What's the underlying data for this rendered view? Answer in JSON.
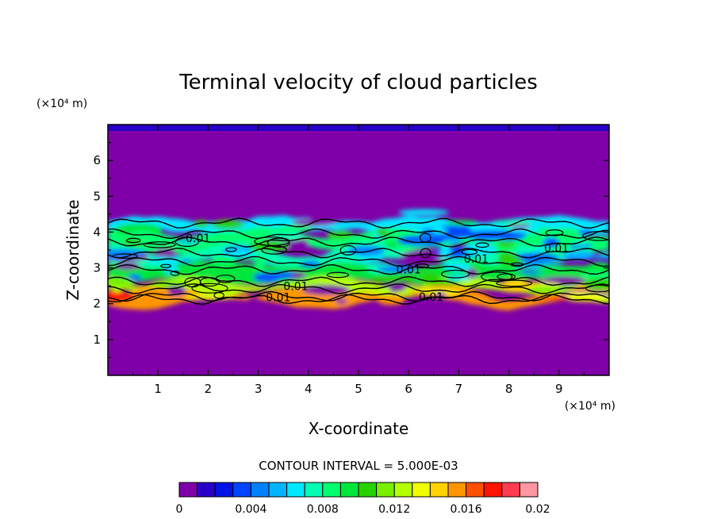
{
  "chart_data": {
    "type": "heatmap",
    "title": "Terminal velocity of cloud particles",
    "xlabel": "X-coordinate",
    "ylabel": "Z-coordinate",
    "x_unit": "(×10⁴ m)",
    "y_unit": "(×10⁴ m)",
    "xlim": [
      0,
      10
    ],
    "ylim": [
      0,
      7
    ],
    "x_ticks": [
      "1",
      "2",
      "3",
      "4",
      "5",
      "6",
      "7",
      "8",
      "9"
    ],
    "y_ticks": [
      "1",
      "2",
      "3",
      "4",
      "5",
      "6"
    ],
    "contour_interval_text": "CONTOUR INTERVAL = 5.000E-03",
    "contour_labels": [
      {
        "text": "0.01",
        "x": 1.8,
        "y": 3.72
      },
      {
        "text": "0.01",
        "x": 3.4,
        "y": 2.07
      },
      {
        "text": "0.01",
        "x": 3.75,
        "y": 2.38
      },
      {
        "text": "0.01",
        "x": 6.0,
        "y": 2.85
      },
      {
        "text": "0.01",
        "x": 6.45,
        "y": 2.08
      },
      {
        "text": "0.01",
        "x": 7.35,
        "y": 3.15
      },
      {
        "text": "0.01",
        "x": 8.95,
        "y": 3.45
      }
    ],
    "colorbar": {
      "min": 0,
      "max": 0.02,
      "step": 0.001,
      "tick_labels": [
        "0",
        "0.004",
        "0.008",
        "0.012",
        "0.016",
        "0.02"
      ],
      "colors": [
        "#7f00a8",
        "#2a00c8",
        "#0014e6",
        "#0046ff",
        "#0082ff",
        "#00b4ff",
        "#00e8ff",
        "#00ffb4",
        "#00ff6e",
        "#00e63c",
        "#28d200",
        "#78f000",
        "#b4ff00",
        "#f0ff00",
        "#ffd200",
        "#ff9600",
        "#ff5000",
        "#ff1400",
        "#ff3c50",
        "#ff96a0"
      ]
    },
    "field_bands": [
      {
        "z_min": 4.0,
        "z_max": 4.35,
        "level": 0.006
      },
      {
        "z_min": 3.5,
        "z_max": 4.0,
        "level": 0.008
      },
      {
        "z_min": 3.1,
        "z_max": 3.5,
        "level": 0.007
      },
      {
        "z_min": 2.6,
        "z_max": 3.1,
        "level": 0.009
      },
      {
        "z_min": 2.3,
        "z_max": 2.6,
        "level": 0.012
      },
      {
        "z_min": 2.05,
        "z_max": 2.3,
        "level": 0.015
      }
    ],
    "background_level": 0
  }
}
